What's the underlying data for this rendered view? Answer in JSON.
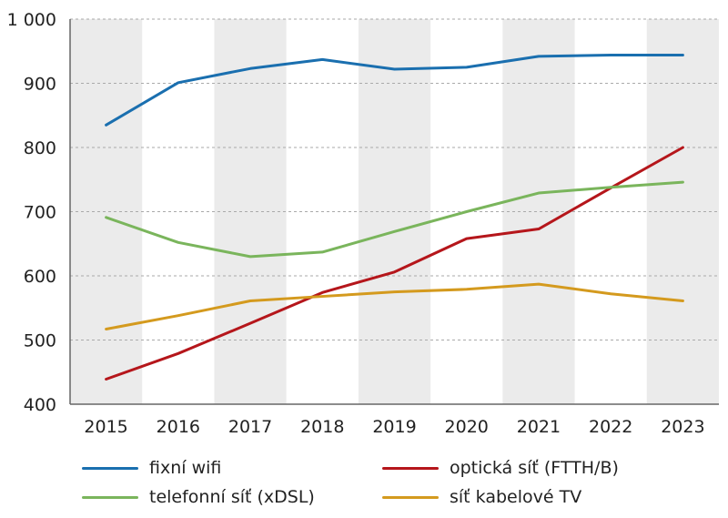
{
  "chart_data": {
    "type": "line",
    "title": "",
    "xlabel": "",
    "ylabel": "",
    "x": [
      "2015",
      "2016",
      "2017",
      "2018",
      "2019",
      "2020",
      "2021",
      "2022",
      "2023"
    ],
    "ylim": [
      400,
      1000
    ],
    "yticks": [
      400,
      500,
      600,
      700,
      800,
      900,
      1000
    ],
    "ytick_labels": [
      "400",
      "500",
      "600",
      "700",
      "800",
      "900",
      "1 000"
    ],
    "grid": true,
    "legend_position": "bottom",
    "series": [
      {
        "name": "fixní wifi",
        "color": "#1a6faf",
        "values": [
          835,
          901,
          923,
          937,
          922,
          925,
          942,
          944,
          944
        ]
      },
      {
        "name": "optická síť (FTTH/B)",
        "color": "#b5161b",
        "values": [
          439,
          479,
          526,
          574,
          606,
          658,
          673,
          737,
          800
        ]
      },
      {
        "name": "telefonní síť (xDSL)",
        "color": "#7ab55c",
        "values": [
          691,
          652,
          630,
          637,
          669,
          700,
          729,
          738,
          746
        ]
      },
      {
        "name": "síť kabelové TV",
        "color": "#d49a1e",
        "values": [
          517,
          538,
          561,
          568,
          575,
          579,
          587,
          572,
          561
        ]
      }
    ]
  }
}
